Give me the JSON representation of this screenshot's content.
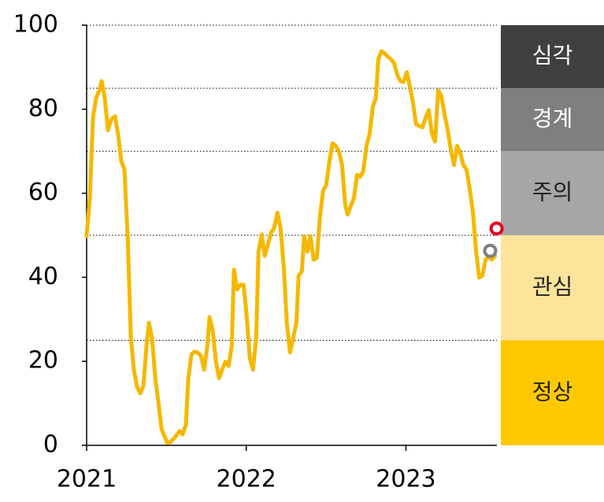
{
  "chart_data": {
    "type": "line",
    "x": [
      2021.0,
      2021.02,
      2021.04,
      2021.059,
      2021.079,
      2021.094,
      2021.114,
      2021.133,
      2021.153,
      2021.178,
      2021.198,
      2021.217,
      2021.237,
      2021.257,
      2021.277,
      2021.296,
      2021.316,
      2021.336,
      2021.356,
      2021.375,
      2021.39,
      2021.41,
      2021.43,
      2021.449,
      2021.469,
      2021.489,
      2021.504,
      2021.523,
      2021.543,
      2021.563,
      2021.583,
      2021.602,
      2021.622,
      2021.637,
      2021.657,
      2021.677,
      2021.696,
      2021.716,
      2021.736,
      2021.756,
      2021.77,
      2021.79,
      2021.81,
      2021.83,
      2021.849,
      2021.869,
      2021.889,
      2021.909,
      2021.923,
      2021.943,
      2021.963,
      2021.983,
      2022.002,
      2022.022,
      2022.042,
      2022.062,
      2022.077,
      2022.096,
      2022.116,
      2022.136,
      2022.156,
      2022.175,
      2022.195,
      2022.215,
      2022.235,
      2022.254,
      2022.274,
      2022.294,
      2022.314,
      2022.328,
      2022.348,
      2022.363,
      2022.383,
      2022.402,
      2022.422,
      2022.442,
      2022.462,
      2022.481,
      2022.501,
      2022.521,
      2022.541,
      2022.56,
      2022.58,
      2022.6,
      2022.62,
      2022.635,
      2022.654,
      2022.674,
      2022.694,
      2022.714,
      2022.733,
      2022.753,
      2022.773,
      2022.793,
      2022.812,
      2022.827,
      2022.847,
      2022.867,
      2022.886,
      2022.906,
      2022.926,
      2022.946,
      2022.965,
      2022.985,
      2023.005,
      2023.025,
      2023.044,
      2023.064,
      2023.084,
      2023.104,
      2023.123,
      2023.143,
      2023.163,
      2023.183,
      2023.202,
      2023.222,
      2023.242,
      2023.262,
      2023.281,
      2023.301,
      2023.321,
      2023.341,
      2023.36,
      2023.38,
      2023.4,
      2023.42,
      2023.44,
      2023.459,
      2023.479,
      2023.499,
      2023.519,
      2023.538,
      2023.558
    ],
    "series": [
      {
        "color": "#f5b800",
        "values": [
          49.8,
          59,
          78,
          82.6,
          84.5,
          86.7,
          82.6,
          75,
          77.5,
          78.3,
          73.8,
          67.6,
          65.7,
          49.8,
          25.5,
          18,
          13.9,
          12.4,
          14.2,
          23.6,
          29.2,
          25.5,
          16,
          10.5,
          3.9,
          2.1,
          0.6,
          0.7,
          1.5,
          2.4,
          3.4,
          2.6,
          4.9,
          16,
          21.7,
          22.3,
          22.1,
          21.3,
          18,
          23.6,
          30.5,
          27.3,
          19.9,
          16,
          18,
          19.9,
          18.9,
          23.6,
          41.8,
          37.1,
          38.2,
          38.2,
          31.1,
          20.8,
          18,
          25.5,
          46.1,
          50.2,
          45.1,
          47.9,
          50.7,
          51.7,
          55.4,
          51.7,
          42.3,
          29.2,
          22.1,
          25.5,
          29.2,
          40.4,
          41.4,
          49.8,
          46.1,
          49.8,
          44.2,
          44.6,
          54.5,
          60.5,
          62,
          67.6,
          71.9,
          71.3,
          70,
          66.7,
          57.3,
          54.9,
          56.9,
          58.8,
          64.4,
          63.9,
          65.2,
          71.3,
          74.2,
          80.7,
          82.6,
          91.9,
          93.8,
          93.3,
          92.5,
          91.9,
          91,
          88.2,
          86.7,
          86.5,
          88.8,
          85.4,
          81.6,
          76.4,
          76,
          75.7,
          77.9,
          79.8,
          74.2,
          72.3,
          84.5,
          83.1,
          78.8,
          75,
          70.4,
          66.7,
          71.3,
          69.5,
          66.7,
          65.7,
          61,
          55.4,
          46.1,
          39.9,
          40.4,
          44.2,
          45.1,
          44.2,
          45.1
        ]
      }
    ],
    "points": [
      {
        "x": 2023.568,
        "y": 51.6,
        "color": "#e8001c"
      },
      {
        "x": 2023.528,
        "y": 46.3,
        "color": "#808080"
      }
    ],
    "bands": [
      {
        "label": "정상",
        "from": 0,
        "to": 25,
        "color": "#ffc800",
        "text_color": "#222222"
      },
      {
        "label": "관심",
        "from": 25,
        "to": 50,
        "color": "#fde49a",
        "text_color": "#222222"
      },
      {
        "label": "주의",
        "from": 50,
        "to": 70,
        "color": "#a6a6a6",
        "text_color": "#222222"
      },
      {
        "label": "경계",
        "from": 70,
        "to": 85,
        "color": "#7f7f7f",
        "text_color": "#ffffff"
      },
      {
        "label": "심각",
        "from": 85,
        "to": 100,
        "color": "#404040",
        "text_color": "#ffffff"
      }
    ],
    "xlim": [
      2021,
      2023.57
    ],
    "xticks": [
      2021,
      2022,
      2023
    ],
    "ylim": [
      0,
      100
    ],
    "yticks": [
      0,
      20,
      40,
      60,
      80,
      100
    ]
  }
}
